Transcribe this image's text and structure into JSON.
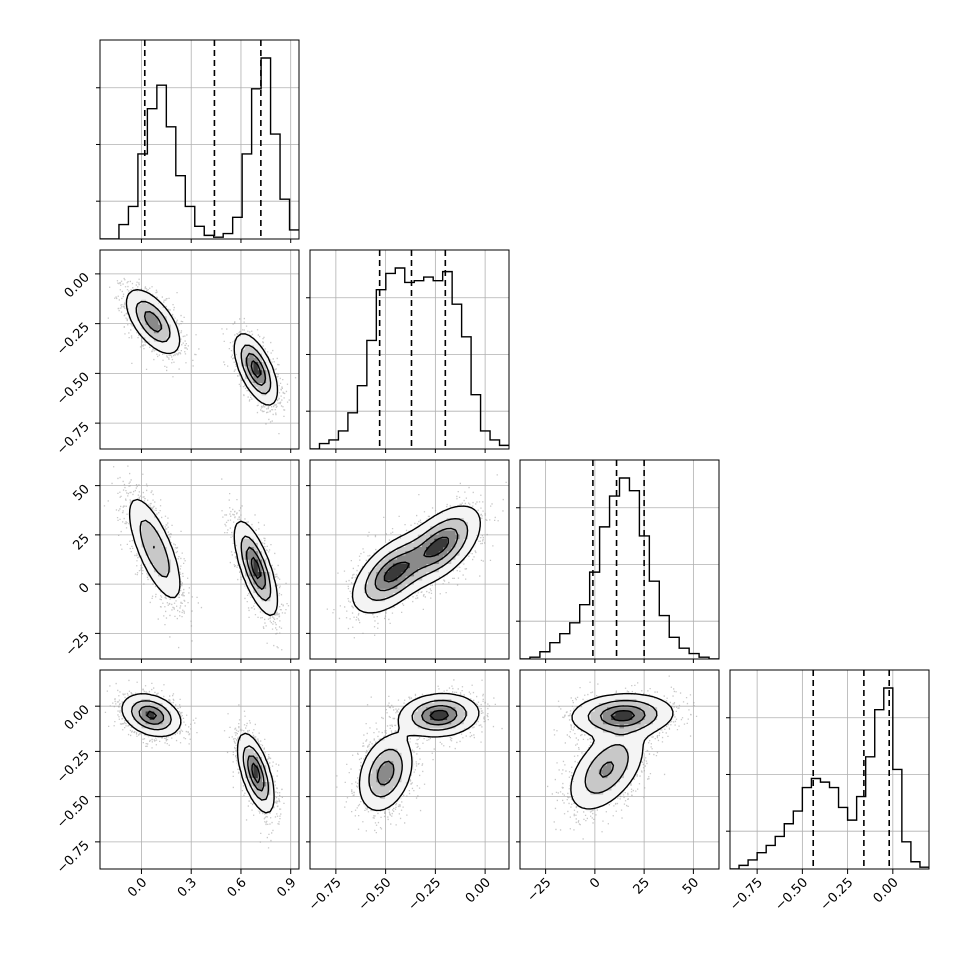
{
  "chart_data": {
    "type": "corner-plot",
    "n_params": 4,
    "grid": true,
    "params": [
      {
        "range": [
          -0.25,
          0.95
        ],
        "ticks": [
          0.0,
          0.3,
          0.6,
          0.9
        ],
        "tick_labels": [
          "0.0",
          "0.3",
          "0.6",
          "0.9"
        ],
        "quantiles": [
          0.02,
          0.44,
          0.72
        ],
        "hist_bins": [
          0.0,
          0.0,
          0.08,
          0.18,
          0.47,
          0.72,
          0.85,
          0.62,
          0.35,
          0.18,
          0.07,
          0.02,
          0.01,
          0.03,
          0.12,
          0.47,
          0.83,
          1.0,
          0.58,
          0.22,
          0.05
        ]
      },
      {
        "range": [
          -0.88,
          0.12
        ],
        "ticks": [
          -0.75,
          -0.5,
          -0.25,
          0.0
        ],
        "tick_labels": [
          "−0.75",
          "−0.50",
          "−0.25",
          "0.00"
        ],
        "quantiles": [
          -0.53,
          -0.37,
          -0.2
        ],
        "hist_bins": [
          0.0,
          0.03,
          0.05,
          0.1,
          0.2,
          0.35,
          0.6,
          0.88,
          0.97,
          1.0,
          0.92,
          0.93,
          0.95,
          0.93,
          0.98,
          0.8,
          0.62,
          0.3,
          0.1,
          0.05,
          0.02
        ]
      },
      {
        "range": [
          -38,
          63
        ],
        "ticks": [
          -25,
          0,
          25,
          50
        ],
        "tick_labels": [
          "−25",
          "0",
          "25",
          "50"
        ],
        "quantiles": [
          -1,
          11,
          25
        ],
        "hist_bins": [
          0.0,
          0.01,
          0.04,
          0.09,
          0.14,
          0.2,
          0.3,
          0.48,
          0.73,
          0.9,
          1.0,
          0.93,
          0.68,
          0.43,
          0.24,
          0.12,
          0.06,
          0.03,
          0.01,
          0.0
        ]
      },
      {
        "range": [
          -0.9,
          0.2
        ],
        "ticks": [
          -0.75,
          -0.5,
          -0.25,
          0.0
        ],
        "tick_labels": [
          "−0.75",
          "−0.50",
          "−0.25",
          "0.00"
        ],
        "quantiles": [
          -0.44,
          -0.16,
          -0.02
        ],
        "hist_bins": [
          0.0,
          0.02,
          0.05,
          0.09,
          0.13,
          0.18,
          0.25,
          0.32,
          0.45,
          0.5,
          0.48,
          0.45,
          0.34,
          0.27,
          0.4,
          0.62,
          0.88,
          1.0,
          0.55,
          0.15,
          0.04,
          0.01
        ]
      }
    ],
    "y_axis_labels": {
      "row2": [
        "−0.75",
        "−0.50",
        "−0.25",
        "0.00"
      ],
      "row3": [
        "−25",
        "0",
        "25",
        "50"
      ],
      "row4": [
        "−0.75",
        "−0.50",
        "−0.25",
        "0.00"
      ]
    },
    "pairs": [
      {
        "x_param": 0,
        "y_param": 1,
        "clusters": [
          {
            "mx": 0.07,
            "my": -0.24,
            "sx": 0.085,
            "sy": 0.085,
            "rho": -0.6,
            "w": 0.5
          },
          {
            "mx": 0.69,
            "my": -0.48,
            "sx": 0.065,
            "sy": 0.09,
            "rho": -0.6,
            "w": 0.5
          }
        ]
      },
      {
        "x_param": 0,
        "y_param": 2,
        "clusters": [
          {
            "mx": 0.08,
            "my": 18,
            "sx": 0.085,
            "sy": 14,
            "rho": -0.72,
            "w": 0.5
          },
          {
            "mx": 0.69,
            "my": 8,
            "sx": 0.065,
            "sy": 12,
            "rho": -0.7,
            "w": 0.5
          }
        ]
      },
      {
        "x_param": 1,
        "y_param": 2,
        "clusters": [
          {
            "mx": -0.47,
            "my": 5,
            "sx": 0.1,
            "sy": 10,
            "rho": 0.55,
            "w": 0.5
          },
          {
            "mx": -0.22,
            "my": 20,
            "sx": 0.1,
            "sy": 10,
            "rho": 0.55,
            "w": 0.5
          }
        ]
      },
      {
        "x_param": 0,
        "y_param": 3,
        "clusters": [
          {
            "mx": 0.06,
            "my": -0.05,
            "sx": 0.09,
            "sy": 0.06,
            "rho": -0.3,
            "w": 0.5
          },
          {
            "mx": 0.69,
            "my": -0.37,
            "sx": 0.055,
            "sy": 0.11,
            "rho": -0.6,
            "w": 0.5
          }
        ]
      },
      {
        "x_param": 1,
        "y_param": 3,
        "clusters": [
          {
            "mx": -0.23,
            "my": -0.05,
            "sx": 0.1,
            "sy": 0.06,
            "rho": 0.1,
            "w": 0.5
          },
          {
            "mx": -0.5,
            "my": -0.37,
            "sx": 0.07,
            "sy": 0.11,
            "rho": 0.3,
            "w": 0.5
          }
        ]
      },
      {
        "x_param": 2,
        "y_param": 3,
        "clusters": [
          {
            "mx": 14,
            "my": -0.05,
            "sx": 13,
            "sy": 0.06,
            "rho": 0.1,
            "w": 0.5
          },
          {
            "mx": 6,
            "my": -0.35,
            "sx": 10,
            "sy": 0.12,
            "rho": 0.5,
            "w": 0.5
          }
        ]
      }
    ],
    "colors": {
      "line": "#000000",
      "grid": "#b0b0b0",
      "scatter": "#9a9a9a"
    }
  }
}
